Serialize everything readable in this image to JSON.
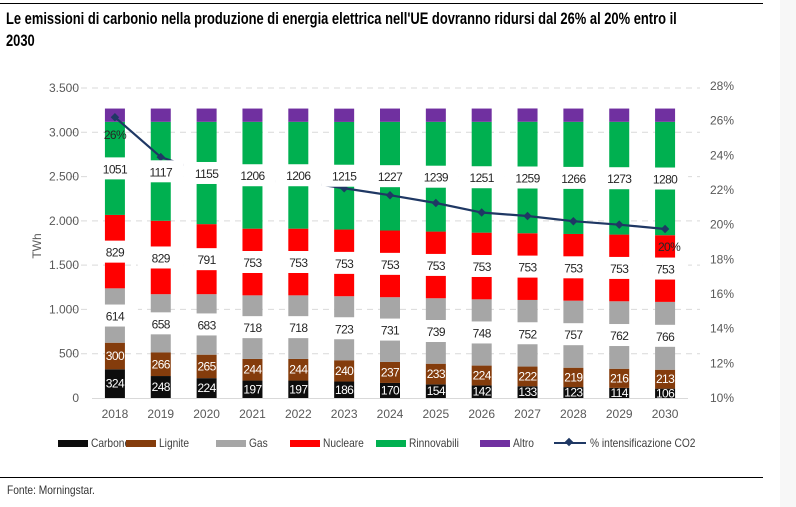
{
  "header": {
    "title_line1": "Le emissioni di carbonio nella produzione di energia elettrica nell'UE dovranno ridursi dal 26% al 20% entro il",
    "title_line2": "2030"
  },
  "footer": {
    "source": "Fonte: Morningstar."
  },
  "colors": {
    "Carbone": "#0d0d0d",
    "Lignite": "#843c0c",
    "Gas": "#a6a6a6",
    "Nucleare": "#ff0000",
    "Rinnovabili": "#00b050",
    "Altro": "#7030a0",
    "line": "#1f3864",
    "grid": "#d9d9d9"
  },
  "chart_data": {
    "type": "bar",
    "subtype": "stacked-bar-with-line",
    "title": "Le emissioni di carbonio nella produzione di energia elettrica nell'UE dovranno ridursi dal 26% al 20% entro il 2030",
    "categories": [
      "2018",
      "2019",
      "2020",
      "2021",
      "2022",
      "2023",
      "2024",
      "2025",
      "2026",
      "2027",
      "2028",
      "2029",
      "2030"
    ],
    "ylabel": "TWh",
    "ylim": [
      0,
      3500
    ],
    "yticks": [
      "0",
      "500",
      "1.000",
      "1.500",
      "2.000",
      "2.500",
      "3.000",
      "3.500"
    ],
    "y2lim": [
      10,
      28
    ],
    "y2ticks": [
      "10%",
      "12%",
      "14%",
      "16%",
      "18%",
      "20%",
      "22%",
      "24%",
      "26%",
      "28%"
    ],
    "grid": true,
    "legend_position": "bottom",
    "series": [
      {
        "name": "Carbone",
        "kind": "bar",
        "values": [
          324,
          248,
          224,
          197,
          197,
          186,
          170,
          154,
          142,
          133,
          123,
          114,
          106
        ]
      },
      {
        "name": "Lignite",
        "kind": "bar",
        "values": [
          300,
          266,
          265,
          244,
          244,
          240,
          237,
          233,
          224,
          222,
          219,
          216,
          213
        ]
      },
      {
        "name": "Gas",
        "kind": "bar",
        "values": [
          614,
          658,
          683,
          718,
          718,
          723,
          731,
          739,
          748,
          752,
          757,
          762,
          766
        ]
      },
      {
        "name": "Nucleare",
        "kind": "bar",
        "values": [
          829,
          829,
          791,
          753,
          753,
          753,
          753,
          753,
          753,
          753,
          753,
          753,
          753
        ]
      },
      {
        "name": "Rinnovabili",
        "kind": "bar",
        "values": [
          1051,
          1117,
          1155,
          1206,
          1206,
          1215,
          1227,
          1239,
          1251,
          1259,
          1266,
          1273,
          1280
        ]
      },
      {
        "name": "Altro",
        "kind": "bar",
        "values": [
          150,
          150,
          150,
          150,
          150,
          150,
          150,
          150,
          150,
          150,
          150,
          150,
          150
        ]
      },
      {
        "name": "% intensificazione CO2",
        "kind": "line",
        "axis": "right",
        "values": [
          26.2,
          23.9,
          23.0,
          22.5,
          22.5,
          22.1,
          21.7,
          21.25,
          20.7,
          20.5,
          20.2,
          20.0,
          19.75
        ]
      }
    ],
    "annotations": [
      {
        "category": "2018",
        "text": "26%"
      },
      {
        "category": "2030",
        "text": "20%"
      }
    ],
    "legend": [
      "Carbone",
      "Lignite",
      "Gas",
      "Nucleare",
      "Rinnovabili",
      "Altro",
      "% intensificazione CO2"
    ]
  }
}
